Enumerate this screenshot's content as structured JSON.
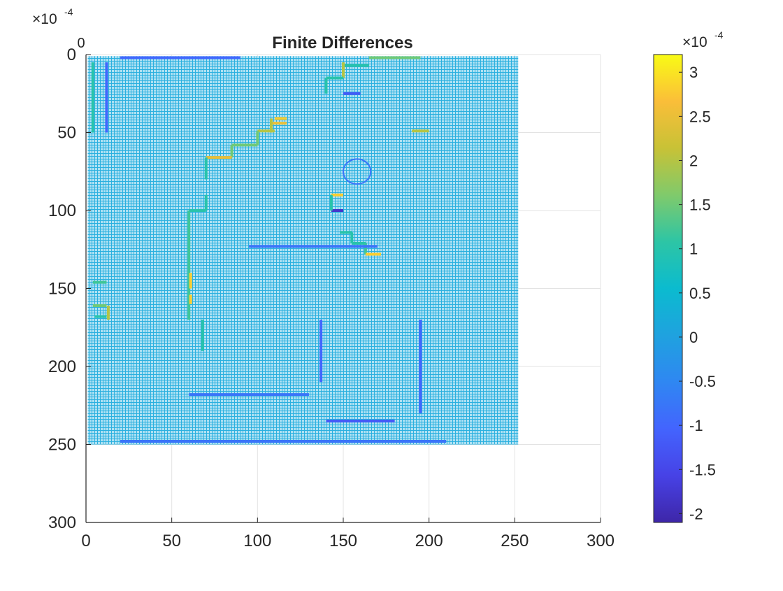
{
  "chart_data": {
    "type": "heatmap",
    "title": "Finite Differences",
    "xlabel": "",
    "ylabel": "",
    "xlim": [
      0,
      300
    ],
    "ylim": [
      300,
      0
    ],
    "y_axis_reversed": true,
    "x_ticks": [
      "0",
      "50",
      "100",
      "150",
      "200",
      "250",
      "300"
    ],
    "y_ticks": [
      "0",
      "50",
      "100",
      "150",
      "200",
      "250",
      "300"
    ],
    "extra_tick_label": "0",
    "axis_exponent": {
      "base": "×10",
      "power": "-4"
    },
    "grid": true,
    "data_extent": {
      "x": [
        1,
        252
      ],
      "y": [
        1,
        250
      ]
    },
    "background_value": 0.1,
    "colorbar": {
      "location": "right",
      "clim": [
        -2.1,
        3.2
      ],
      "ticks": [
        "-2",
        "-1.5",
        "-1",
        "-0.5",
        "0",
        "0.5",
        "1",
        "1.5",
        "2",
        "2.5",
        "3"
      ],
      "exponent": {
        "base": "×10",
        "power": "-4"
      },
      "colormap": "parula"
    },
    "features": [
      {
        "kind": "hline",
        "x": [
          20,
          90
        ],
        "y": 2,
        "value": -1.0
      },
      {
        "kind": "hline",
        "x": [
          165,
          195
        ],
        "y": 2,
        "value": 1.5
      },
      {
        "kind": "hline",
        "x": [
          150,
          165
        ],
        "y": 7,
        "value": 1.0
      },
      {
        "kind": "vline",
        "x": 150,
        "y": [
          5,
          15
        ],
        "value": 2.0
      },
      {
        "kind": "hline",
        "x": [
          140,
          150
        ],
        "y": 15,
        "value": 1.0
      },
      {
        "kind": "vline",
        "x": 140,
        "y": [
          15,
          25
        ],
        "value": 1.0
      },
      {
        "kind": "hline",
        "x": [
          150,
          160
        ],
        "y": 25,
        "value": -1.2
      },
      {
        "kind": "hline",
        "x": [
          110,
          117
        ],
        "y": 41,
        "value": 2.8
      },
      {
        "kind": "hline",
        "x": [
          108,
          117
        ],
        "y": 44,
        "value": 2.5
      },
      {
        "kind": "vline",
        "x": 108,
        "y": [
          41,
          50
        ],
        "value": 2.0
      },
      {
        "kind": "hline",
        "x": [
          100,
          110
        ],
        "y": 49,
        "value": 2.0
      },
      {
        "kind": "hline",
        "x": [
          190,
          200
        ],
        "y": 49,
        "value": 2.0
      },
      {
        "kind": "vline",
        "x": 100,
        "y": [
          49,
          58
        ],
        "value": 1.5
      },
      {
        "kind": "hline",
        "x": [
          85,
          100
        ],
        "y": 58,
        "value": 1.5
      },
      {
        "kind": "vline",
        "x": 85,
        "y": [
          58,
          66
        ],
        "value": 1.5
      },
      {
        "kind": "hline",
        "x": [
          70,
          85
        ],
        "y": 66,
        "value": 2.5
      },
      {
        "kind": "vline",
        "x": 70,
        "y": [
          66,
          80
        ],
        "value": 1.0
      },
      {
        "kind": "hline",
        "x": [
          143,
          150
        ],
        "y": 90,
        "value": 2.8
      },
      {
        "kind": "hline",
        "x": [
          143,
          150
        ],
        "y": 100,
        "value": -1.8
      },
      {
        "kind": "vline",
        "x": 143,
        "y": [
          90,
          100
        ],
        "value": 1.0
      },
      {
        "kind": "vline",
        "x": 60,
        "y": [
          100,
          170
        ],
        "value": 1.2
      },
      {
        "kind": "hline",
        "x": [
          60,
          70
        ],
        "y": 100,
        "value": 1.0
      },
      {
        "kind": "vline",
        "x": 70,
        "y": [
          90,
          100
        ],
        "value": 1.0
      },
      {
        "kind": "vline",
        "x": 61,
        "y": [
          140,
          150
        ],
        "value": 2.8
      },
      {
        "kind": "vline",
        "x": 61,
        "y": [
          154,
          160
        ],
        "value": 2.8
      },
      {
        "kind": "hline",
        "x": [
          148,
          155
        ],
        "y": 114,
        "value": 1.0
      },
      {
        "kind": "vline",
        "x": 155,
        "y": [
          114,
          121
        ],
        "value": 1.0
      },
      {
        "kind": "hline",
        "x": [
          155,
          163
        ],
        "y": 121,
        "value": 1.0
      },
      {
        "kind": "vline",
        "x": 163,
        "y": [
          121,
          128
        ],
        "value": 1.2
      },
      {
        "kind": "hline",
        "x": [
          163,
          172
        ],
        "y": 128,
        "value": 2.8
      },
      {
        "kind": "vline",
        "x": 4,
        "y": [
          5,
          50
        ],
        "value": 1.0
      },
      {
        "kind": "vline",
        "x": 12,
        "y": [
          5,
          50
        ],
        "value": -1.0
      },
      {
        "kind": "hline",
        "x": [
          4,
          12
        ],
        "y": 146,
        "value": 1.2
      },
      {
        "kind": "hline",
        "x": [
          4,
          12
        ],
        "y": 161,
        "value": 1.5
      },
      {
        "kind": "vline",
        "x": 13,
        "y": [
          161,
          170
        ],
        "value": 2.0
      },
      {
        "kind": "hline",
        "x": [
          5,
          12
        ],
        "y": 168,
        "value": 1.0
      },
      {
        "kind": "vline",
        "x": 68,
        "y": [
          170,
          190
        ],
        "value": 1.0
      },
      {
        "kind": "vline",
        "x": 137,
        "y": [
          170,
          210
        ],
        "value": -1.0
      },
      {
        "kind": "vline",
        "x": 195,
        "y": [
          170,
          230
        ],
        "value": -1.0
      },
      {
        "kind": "hline",
        "x": [
          95,
          170
        ],
        "y": 123,
        "value": -0.8
      },
      {
        "kind": "hline",
        "x": [
          140,
          180
        ],
        "y": 235,
        "value": -1.2
      },
      {
        "kind": "hline",
        "x": [
          20,
          210
        ],
        "y": 248,
        "value": -0.8
      },
      {
        "kind": "hline",
        "x": [
          60,
          130
        ],
        "y": 218,
        "value": -0.8
      },
      {
        "kind": "ring",
        "x": 158,
        "y": 75,
        "r": 8,
        "value": -0.8
      }
    ]
  }
}
